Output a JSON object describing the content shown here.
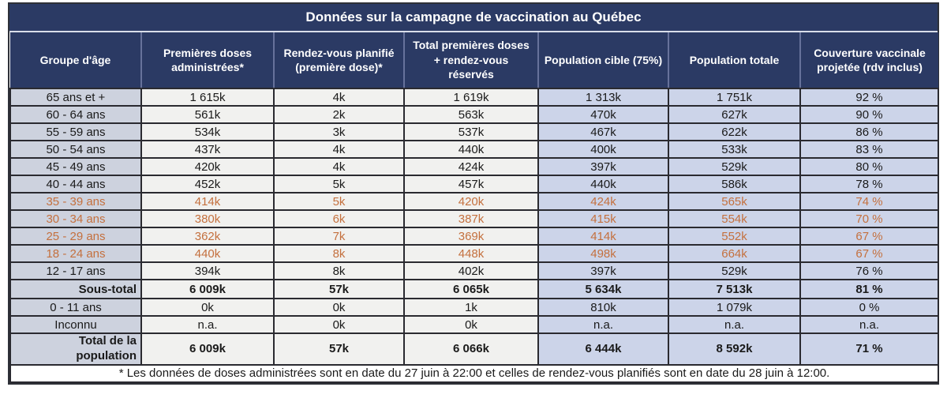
{
  "title": "Données sur la campagne de vaccination au Québec",
  "footnote": "* Les données de doses administrées sont en date du 27 juin à 22:00 et celles de rendez-vous planifiés sont en date du 28 juin à 12:00.",
  "columns": [
    "Groupe d'âge",
    "Premières doses administrées*",
    "Rendez-vous planifié (première dose)*",
    "Total premières doses + rendez-vous réservés",
    "Population cible (75%)",
    "Population totale",
    "Couverture vaccinale projetée (rdv inclus)"
  ],
  "rows": [
    {
      "label": "65 ans et +",
      "type": "data",
      "orange": false,
      "values": [
        "1 615k",
        "4k",
        "1 619k",
        "1 313k",
        "1 751k",
        "92 %"
      ]
    },
    {
      "label": "60 - 64 ans",
      "type": "data",
      "orange": false,
      "values": [
        "561k",
        "2k",
        "563k",
        "470k",
        "627k",
        "90 %"
      ]
    },
    {
      "label": "55 - 59 ans",
      "type": "data",
      "orange": false,
      "values": [
        "534k",
        "3k",
        "537k",
        "467k",
        "622k",
        "86 %"
      ]
    },
    {
      "label": "50 - 54 ans",
      "type": "data",
      "orange": false,
      "values": [
        "437k",
        "4k",
        "440k",
        "400k",
        "533k",
        "83 %"
      ]
    },
    {
      "label": "45 - 49 ans",
      "type": "data",
      "orange": false,
      "values": [
        "420k",
        "4k",
        "424k",
        "397k",
        "529k",
        "80 %"
      ]
    },
    {
      "label": "40 - 44 ans",
      "type": "data",
      "orange": false,
      "values": [
        "452k",
        "5k",
        "457k",
        "440k",
        "586k",
        "78 %"
      ]
    },
    {
      "label": "35 - 39 ans",
      "type": "data",
      "orange": true,
      "values": [
        "414k",
        "5k",
        "420k",
        "424k",
        "565k",
        "74 %"
      ]
    },
    {
      "label": "30 - 34 ans",
      "type": "data",
      "orange": true,
      "values": [
        "380k",
        "6k",
        "387k",
        "415k",
        "554k",
        "70 %"
      ]
    },
    {
      "label": "25 - 29 ans",
      "type": "data",
      "orange": true,
      "values": [
        "362k",
        "7k",
        "369k",
        "414k",
        "552k",
        "67 %"
      ]
    },
    {
      "label": "18 - 24 ans",
      "type": "data",
      "orange": true,
      "values": [
        "440k",
        "8k",
        "448k",
        "498k",
        "664k",
        "67 %"
      ]
    },
    {
      "label": "12 - 17 ans",
      "type": "data",
      "orange": false,
      "values": [
        "394k",
        "8k",
        "402k",
        "397k",
        "529k",
        "76 %"
      ]
    },
    {
      "label": "Sous-total",
      "type": "subtotal",
      "orange": false,
      "values": [
        "6 009k",
        "57k",
        "6 065k",
        "5 634k",
        "7 513k",
        "81 %"
      ]
    },
    {
      "label": "0 - 11 ans",
      "type": "data",
      "orange": false,
      "values": [
        "0k",
        "0k",
        "1k",
        "810k",
        "1 079k",
        "0 %"
      ]
    },
    {
      "label": "Inconnu",
      "type": "data",
      "orange": false,
      "values": [
        "n.a.",
        "0k",
        "0k",
        "n.a.",
        "n.a.",
        "n.a."
      ]
    },
    {
      "label": "Total de la population",
      "type": "total",
      "orange": false,
      "values": [
        "6 009k",
        "57k",
        "6 066k",
        "6 444k",
        "8 592k",
        "71 %"
      ]
    }
  ],
  "colors": {
    "header_navy": "#2B3A64",
    "age_column_bg": "#CDD2DE",
    "doses_columns_bg": "#F1F1EF",
    "population_columns_bg": "#CCD4E9",
    "orange_text": "#C4703E",
    "border_dark": "#2A2A30"
  },
  "chart_data": {
    "type": "table",
    "title": "Données sur la campagne de vaccination au Québec",
    "columns": [
      "Groupe d'âge",
      "Premières doses administrées*",
      "Rendez-vous planifié (première dose)*",
      "Total premières doses + rendez-vous réservés",
      "Population cible (75%)",
      "Population totale",
      "Couverture vaccinale projetée (rdv inclus)"
    ],
    "rows": [
      [
        "65 ans et +",
        "1 615k",
        "4k",
        "1 619k",
        "1 313k",
        "1 751k",
        "92 %"
      ],
      [
        "60 - 64 ans",
        "561k",
        "2k",
        "563k",
        "470k",
        "627k",
        "90 %"
      ],
      [
        "55 - 59 ans",
        "534k",
        "3k",
        "537k",
        "467k",
        "622k",
        "86 %"
      ],
      [
        "50 - 54 ans",
        "437k",
        "4k",
        "440k",
        "400k",
        "533k",
        "83 %"
      ],
      [
        "45 - 49 ans",
        "420k",
        "4k",
        "424k",
        "397k",
        "529k",
        "80 %"
      ],
      [
        "40 - 44 ans",
        "452k",
        "5k",
        "457k",
        "440k",
        "586k",
        "78 %"
      ],
      [
        "35 - 39 ans",
        "414k",
        "5k",
        "420k",
        "424k",
        "565k",
        "74 %"
      ],
      [
        "30 - 34 ans",
        "380k",
        "6k",
        "387k",
        "415k",
        "554k",
        "70 %"
      ],
      [
        "25 - 29 ans",
        "362k",
        "7k",
        "369k",
        "414k",
        "552k",
        "67 %"
      ],
      [
        "18 - 24 ans",
        "440k",
        "8k",
        "448k",
        "498k",
        "664k",
        "67 %"
      ],
      [
        "12 - 17 ans",
        "394k",
        "8k",
        "402k",
        "397k",
        "529k",
        "76 %"
      ],
      [
        "Sous-total",
        "6 009k",
        "57k",
        "6 065k",
        "5 634k",
        "7 513k",
        "81 %"
      ],
      [
        "0 - 11 ans",
        "0k",
        "0k",
        "1k",
        "810k",
        "1 079k",
        "0 %"
      ],
      [
        "Inconnu",
        "n.a.",
        "0k",
        "0k",
        "n.a.",
        "n.a.",
        "n.a."
      ],
      [
        "Total de la population",
        "6 009k",
        "57k",
        "6 066k",
        "6 444k",
        "8 592k",
        "71 %"
      ]
    ],
    "footnote": "* Les données de doses administrées sont en date du 27 juin à 22:00 et celles de rendez-vous planifiés sont en date du 28 juin à 12:00."
  }
}
